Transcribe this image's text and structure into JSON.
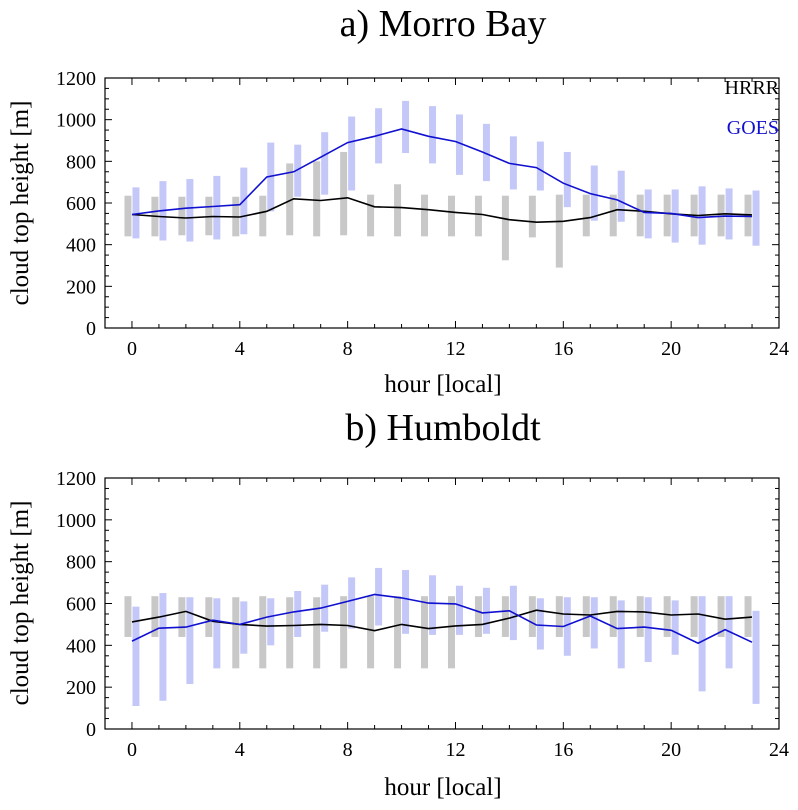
{
  "colors": {
    "hrrr_line": "#000000",
    "goes_line": "#1010d0",
    "hrrr_bar": "#c8c8c8",
    "goes_bar": "#c4c8f8"
  },
  "chart_data": [
    {
      "type": "line",
      "title": "a) Morro Bay",
      "xlabel": "hour [local]",
      "ylabel": "cloud top height [m]",
      "xlim": [
        -1,
        24
      ],
      "ylim": [
        0,
        1200
      ],
      "xticks": [
        0,
        4,
        8,
        12,
        16,
        20,
        24
      ],
      "yticks": [
        0,
        200,
        400,
        600,
        800,
        1000,
        1200
      ],
      "legend": "top-right",
      "series": [
        {
          "name": "HRRR",
          "color": "#000000",
          "x": [
            0,
            1,
            2,
            3,
            4,
            5,
            6,
            7,
            8,
            9,
            10,
            11,
            12,
            13,
            14,
            15,
            16,
            17,
            18,
            19,
            20,
            21,
            22,
            23
          ],
          "values": [
            545,
            535,
            528,
            535,
            533,
            560,
            620,
            612,
            625,
            582,
            578,
            568,
            555,
            545,
            520,
            508,
            512,
            530,
            568,
            560,
            548,
            540,
            548,
            543
          ],
          "range_low": [
            440,
            440,
            445,
            445,
            440,
            440,
            445,
            440,
            445,
            440,
            440,
            440,
            440,
            440,
            325,
            435,
            290,
            440,
            440,
            440,
            440,
            440,
            440,
            440
          ],
          "range_high": [
            635,
            630,
            630,
            630,
            630,
            635,
            790,
            800,
            845,
            640,
            690,
            640,
            635,
            635,
            635,
            635,
            640,
            640,
            640,
            640,
            640,
            640,
            640,
            640
          ]
        },
        {
          "name": "GOES",
          "color": "#1010d0",
          "x": [
            0,
            1,
            2,
            3,
            4,
            5,
            6,
            7,
            8,
            9,
            10,
            11,
            12,
            13,
            14,
            15,
            16,
            17,
            18,
            19,
            20,
            21,
            22,
            23
          ],
          "values": [
            545,
            562,
            575,
            583,
            592,
            725,
            750,
            820,
            890,
            920,
            955,
            920,
            895,
            845,
            790,
            770,
            695,
            645,
            615,
            555,
            550,
            530,
            537,
            535
          ],
          "range_low": [
            430,
            420,
            415,
            425,
            450,
            560,
            630,
            640,
            660,
            790,
            840,
            790,
            735,
            705,
            665,
            660,
            580,
            515,
            510,
            430,
            410,
            400,
            425,
            395
          ],
          "range_high": [
            675,
            705,
            715,
            730,
            770,
            890,
            880,
            940,
            1015,
            1055,
            1090,
            1065,
            1025,
            980,
            920,
            895,
            845,
            780,
            755,
            665,
            665,
            680,
            670,
            660
          ]
        }
      ]
    },
    {
      "type": "line",
      "title": "b) Humboldt",
      "xlabel": "hour [local]",
      "ylabel": "cloud top height [m]",
      "xlim": [
        -1,
        24
      ],
      "ylim": [
        0,
        1200
      ],
      "xticks": [
        0,
        4,
        8,
        12,
        16,
        20,
        24
      ],
      "yticks": [
        0,
        200,
        400,
        600,
        800,
        1000,
        1200
      ],
      "series": [
        {
          "name": "HRRR",
          "color": "#000000",
          "x": [
            0,
            1,
            2,
            3,
            4,
            5,
            6,
            7,
            8,
            9,
            10,
            11,
            12,
            13,
            14,
            15,
            16,
            17,
            18,
            19,
            20,
            21,
            22,
            23
          ],
          "values": [
            512,
            535,
            562,
            515,
            500,
            492,
            495,
            500,
            495,
            470,
            500,
            480,
            493,
            500,
            530,
            568,
            550,
            545,
            562,
            560,
            545,
            550,
            525,
            535
          ],
          "range_low": [
            440,
            440,
            440,
            440,
            290,
            290,
            290,
            290,
            290,
            290,
            290,
            290,
            290,
            440,
            440,
            440,
            440,
            440,
            440,
            440,
            440,
            440,
            440,
            440
          ],
          "range_high": [
            635,
            635,
            630,
            630,
            630,
            635,
            630,
            630,
            635,
            635,
            635,
            635,
            635,
            635,
            635,
            635,
            635,
            635,
            635,
            635,
            635,
            635,
            635,
            635
          ]
        },
        {
          "name": "GOES",
          "color": "#1010d0",
          "x": [
            0,
            1,
            2,
            3,
            4,
            5,
            6,
            7,
            8,
            9,
            10,
            11,
            12,
            13,
            14,
            15,
            16,
            17,
            18,
            19,
            20,
            21,
            22,
            23
          ],
          "values": [
            420,
            482,
            487,
            520,
            500,
            535,
            560,
            578,
            610,
            643,
            627,
            602,
            598,
            555,
            565,
            497,
            490,
            540,
            480,
            487,
            472,
            410,
            475,
            415
          ],
          "range_low": [
            110,
            135,
            215,
            290,
            360,
            400,
            440,
            465,
            480,
            495,
            455,
            450,
            450,
            455,
            425,
            380,
            350,
            385,
            290,
            320,
            355,
            180,
            290,
            120
          ],
          "range_high": [
            585,
            650,
            630,
            625,
            610,
            625,
            660,
            690,
            725,
            770,
            760,
            735,
            685,
            675,
            685,
            625,
            630,
            630,
            615,
            630,
            615,
            635,
            635,
            565
          ]
        }
      ]
    }
  ]
}
